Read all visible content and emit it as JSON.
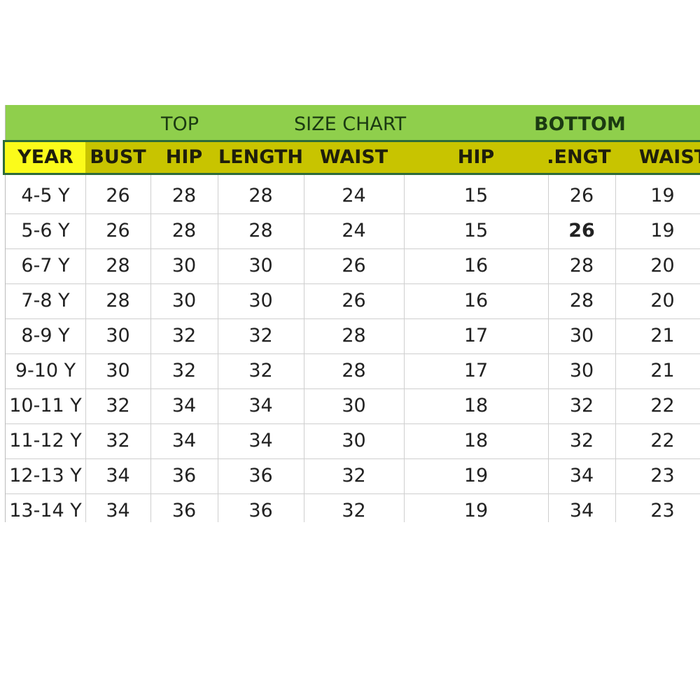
{
  "colors": {
    "band_green": "#8fcf4c",
    "header_olive": "#c8c400",
    "year_yellow": "#fbfb1a",
    "header_border": "#2e6b3a"
  },
  "band": {
    "top": "TOP",
    "title": "SIZE CHART",
    "bottom": "BOTTOM"
  },
  "headers": [
    "YEAR",
    "BUST",
    "HIP",
    "LENGTH",
    "WAIST",
    "HIP",
    ".ENGT",
    "WAIST"
  ],
  "rows": [
    [
      "4-5 Y",
      "26",
      "28",
      "28",
      "24",
      "15",
      "26",
      "19"
    ],
    [
      "5-6 Y",
      "26",
      "28",
      "28",
      "24",
      "15",
      "26",
      "19"
    ],
    [
      "6-7 Y",
      "28",
      "30",
      "30",
      "26",
      "16",
      "28",
      "20"
    ],
    [
      "7-8 Y",
      "28",
      "30",
      "30",
      "26",
      "16",
      "28",
      "20"
    ],
    [
      "8-9 Y",
      "30",
      "32",
      "32",
      "28",
      "17",
      "30",
      "21"
    ],
    [
      "9-10 Y",
      "30",
      "32",
      "32",
      "28",
      "17",
      "30",
      "21"
    ],
    [
      "10-11 Y",
      "32",
      "34",
      "34",
      "30",
      "18",
      "32",
      "22"
    ],
    [
      "11-12 Y",
      "32",
      "34",
      "34",
      "30",
      "18",
      "32",
      "22"
    ],
    [
      "12-13 Y",
      "34",
      "36",
      "36",
      "32",
      "19",
      "34",
      "23"
    ],
    [
      "13-14 Y",
      "34",
      "36",
      "36",
      "32",
      "19",
      "34",
      "23"
    ]
  ]
}
